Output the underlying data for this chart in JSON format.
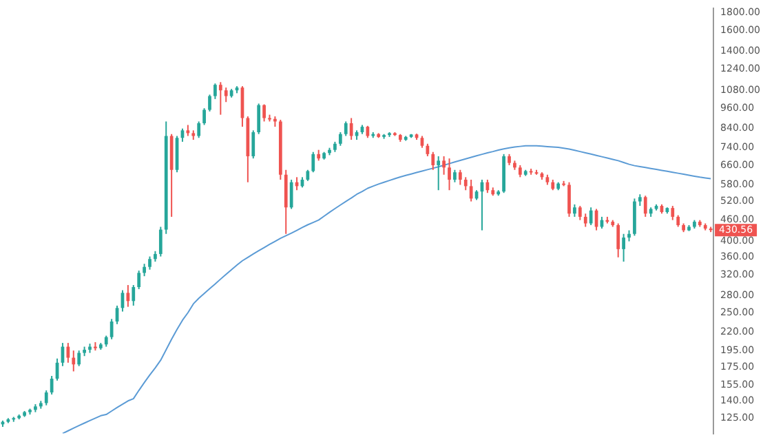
{
  "chart_data": {
    "type": "candlestick",
    "categories": [
      null,
      null,
      null,
      null,
      null,
      null,
      null,
      null,
      null,
      null,
      null,
      null,
      null,
      null,
      null,
      null,
      null,
      null,
      null,
      null,
      null,
      null,
      null,
      null,
      null,
      null,
      null,
      null,
      null,
      null,
      null,
      null,
      null,
      null,
      null,
      null,
      null,
      null,
      null,
      null,
      null,
      null,
      null,
      null,
      null,
      null,
      null,
      null,
      null,
      null,
      null,
      null,
      null,
      null,
      null,
      null,
      null,
      null,
      null,
      null,
      null,
      null,
      null,
      null,
      null,
      null,
      null,
      null,
      null,
      null,
      null,
      null,
      null,
      null,
      null,
      null,
      null,
      null,
      null,
      null,
      null,
      null,
      null,
      null,
      null,
      null,
      null,
      null,
      null,
      null,
      null,
      null,
      null,
      null,
      null,
      null,
      null,
      null,
      null,
      null,
      null,
      null,
      null,
      null,
      null,
      null,
      null,
      null,
      null,
      null,
      null,
      null,
      null,
      null,
      null,
      null,
      null,
      null,
      null,
      null,
      null,
      null,
      null,
      null,
      null,
      null,
      null,
      null,
      null,
      null,
      null
    ],
    "ohlc": [
      [
        120,
        123,
        118,
        122
      ],
      [
        122,
        125,
        121,
        124
      ],
      [
        124,
        126,
        122,
        125
      ],
      [
        125,
        128,
        124,
        127
      ],
      [
        127,
        131,
        126,
        130
      ],
      [
        130,
        133,
        128,
        132
      ],
      [
        132,
        137,
        130,
        135
      ],
      [
        135,
        140,
        133,
        138
      ],
      [
        138,
        150,
        136,
        148
      ],
      [
        148,
        165,
        146,
        162
      ],
      [
        162,
        185,
        160,
        180
      ],
      [
        180,
        205,
        176,
        200
      ],
      [
        200,
        205,
        180,
        186
      ],
      [
        186,
        195,
        170,
        178
      ],
      [
        178,
        195,
        176,
        192
      ],
      [
        192,
        200,
        188,
        196
      ],
      [
        196,
        204,
        192,
        200
      ],
      [
        200,
        206,
        195,
        198
      ],
      [
        198,
        205,
        196,
        203
      ],
      [
        203,
        215,
        200,
        213
      ],
      [
        213,
        240,
        210,
        236
      ],
      [
        236,
        262,
        232,
        258
      ],
      [
        258,
        290,
        252,
        285
      ],
      [
        285,
        300,
        260,
        270
      ],
      [
        270,
        300,
        262,
        296
      ],
      [
        296,
        330,
        292,
        325
      ],
      [
        325,
        345,
        318,
        338
      ],
      [
        338,
        362,
        332,
        356
      ],
      [
        356,
        375,
        350,
        368
      ],
      [
        368,
        440,
        362,
        432
      ],
      [
        432,
        880,
        420,
        800
      ],
      [
        800,
        810,
        470,
        640
      ],
      [
        640,
        800,
        630,
        790
      ],
      [
        790,
        840,
        770,
        830
      ],
      [
        830,
        860,
        800,
        815
      ],
      [
        815,
        830,
        780,
        800
      ],
      [
        800,
        880,
        790,
        870
      ],
      [
        870,
        960,
        860,
        950
      ],
      [
        950,
        1050,
        940,
        1040
      ],
      [
        1040,
        1130,
        1020,
        1120
      ],
      [
        1120,
        1140,
        920,
        1080
      ],
      [
        1080,
        1100,
        1000,
        1040
      ],
      [
        1040,
        1090,
        1030,
        1080
      ],
      [
        1080,
        1110,
        1060,
        1100
      ],
      [
        1100,
        1110,
        850,
        900
      ],
      [
        900,
        910,
        590,
        700
      ],
      [
        700,
        830,
        690,
        820
      ],
      [
        820,
        990,
        810,
        980
      ],
      [
        980,
        985,
        880,
        900
      ],
      [
        900,
        920,
        880,
        895
      ],
      [
        895,
        910,
        850,
        880
      ],
      [
        880,
        890,
        600,
        620
      ],
      [
        620,
        640,
        420,
        500
      ],
      [
        500,
        600,
        495,
        590
      ],
      [
        590,
        610,
        560,
        575
      ],
      [
        575,
        610,
        570,
        600
      ],
      [
        600,
        640,
        595,
        635
      ],
      [
        635,
        720,
        630,
        710
      ],
      [
        710,
        730,
        680,
        690
      ],
      [
        690,
        720,
        685,
        715
      ],
      [
        715,
        740,
        705,
        730
      ],
      [
        730,
        770,
        720,
        760
      ],
      [
        760,
        820,
        750,
        810
      ],
      [
        810,
        880,
        800,
        870
      ],
      [
        870,
        900,
        780,
        800
      ],
      [
        800,
        830,
        780,
        820
      ],
      [
        820,
        860,
        810,
        850
      ],
      [
        850,
        855,
        790,
        800
      ],
      [
        800,
        820,
        790,
        810
      ],
      [
        810,
        815,
        790,
        795
      ],
      [
        795,
        810,
        785,
        805
      ],
      [
        805,
        820,
        795,
        815
      ],
      [
        815,
        820,
        800,
        805
      ],
      [
        805,
        810,
        770,
        780
      ],
      [
        780,
        800,
        775,
        795
      ],
      [
        795,
        810,
        790,
        808
      ],
      [
        808,
        812,
        780,
        790
      ],
      [
        790,
        800,
        740,
        750
      ],
      [
        750,
        760,
        700,
        710
      ],
      [
        710,
        720,
        640,
        660
      ],
      [
        660,
        700,
        560,
        680
      ],
      [
        680,
        700,
        620,
        650
      ],
      [
        650,
        690,
        560,
        600
      ],
      [
        600,
        640,
        590,
        630
      ],
      [
        630,
        640,
        580,
        600
      ],
      [
        600,
        610,
        560,
        575
      ],
      [
        575,
        600,
        520,
        530
      ],
      [
        530,
        560,
        525,
        555
      ],
      [
        555,
        600,
        430,
        590
      ],
      [
        590,
        600,
        550,
        560
      ],
      [
        560,
        570,
        540,
        545
      ],
      [
        545,
        560,
        540,
        555
      ],
      [
        555,
        710,
        550,
        700
      ],
      [
        700,
        710,
        660,
        670
      ],
      [
        670,
        680,
        640,
        650
      ],
      [
        650,
        660,
        610,
        620
      ],
      [
        620,
        640,
        615,
        635
      ],
      [
        635,
        645,
        620,
        630
      ],
      [
        630,
        640,
        620,
        625
      ],
      [
        625,
        630,
        600,
        610
      ],
      [
        610,
        620,
        580,
        590
      ],
      [
        590,
        600,
        560,
        565
      ],
      [
        565,
        590,
        560,
        585
      ],
      [
        585,
        595,
        575,
        580
      ],
      [
        580,
        590,
        470,
        480
      ],
      [
        480,
        510,
        470,
        500
      ],
      [
        500,
        505,
        460,
        470
      ],
      [
        470,
        480,
        440,
        450
      ],
      [
        450,
        500,
        445,
        490
      ],
      [
        490,
        495,
        430,
        440
      ],
      [
        440,
        470,
        435,
        460
      ],
      [
        460,
        470,
        450,
        455
      ],
      [
        455,
        460,
        440,
        445
      ],
      [
        445,
        450,
        360,
        380
      ],
      [
        380,
        420,
        350,
        410
      ],
      [
        410,
        430,
        400,
        420
      ],
      [
        420,
        530,
        415,
        520
      ],
      [
        520,
        545,
        505,
        535
      ],
      [
        535,
        540,
        470,
        480
      ],
      [
        480,
        500,
        470,
        495
      ],
      [
        495,
        510,
        490,
        505
      ],
      [
        505,
        510,
        480,
        485
      ],
      [
        485,
        500,
        480,
        498
      ],
      [
        498,
        505,
        460,
        470
      ],
      [
        470,
        475,
        440,
        445
      ],
      [
        445,
        450,
        425,
        430
      ],
      [
        430,
        445,
        428,
        440
      ],
      [
        440,
        460,
        435,
        455
      ],
      [
        455,
        460,
        440,
        445
      ],
      [
        445,
        450,
        430,
        435
      ],
      [
        435,
        440,
        425,
        430.56
      ]
    ],
    "colors": [
      "#26a69a",
      "#26a69a",
      "#26a69a",
      "#26a69a",
      "#26a69a",
      "#26a69a",
      "#26a69a",
      "#26a69a",
      "#26a69a",
      "#26a69a",
      "#26a69a",
      "#26a69a",
      "#ef5350",
      "#ef5350",
      "#26a69a",
      "#26a69a",
      "#26a69a",
      "#ef5350",
      "#26a69a",
      "#26a69a",
      "#26a69a",
      "#26a69a",
      "#26a69a",
      "#ef5350",
      "#26a69a",
      "#26a69a",
      "#26a69a",
      "#26a69a",
      "#26a69a",
      "#26a69a",
      "#26a69a",
      "#ef5350",
      "#26a69a",
      "#26a69a",
      "#ef5350",
      "#ef5350",
      "#26a69a",
      "#26a69a",
      "#26a69a",
      "#26a69a",
      "#ef5350",
      "#ef5350",
      "#26a69a",
      "#26a69a",
      "#ef5350",
      "#ef5350",
      "#26a69a",
      "#26a69a",
      "#ef5350",
      "#ef5350",
      "#ef5350",
      "#ef5350",
      "#ef5350",
      "#26a69a",
      "#ef5350",
      "#26a69a",
      "#26a69a",
      "#26a69a",
      "#ef5350",
      "#26a69a",
      "#26a69a",
      "#26a69a",
      "#26a69a",
      "#26a69a",
      "#ef5350",
      "#26a69a",
      "#26a69a",
      "#ef5350",
      "#26a69a",
      "#ef5350",
      "#26a69a",
      "#26a69a",
      "#ef5350",
      "#ef5350",
      "#26a69a",
      "#26a69a",
      "#ef5350",
      "#ef5350",
      "#ef5350",
      "#ef5350",
      "#26a69a",
      "#ef5350",
      "#ef5350",
      "#26a69a",
      "#ef5350",
      "#ef5350",
      "#ef5350",
      "#26a69a",
      "#26a69a",
      "#ef5350",
      "#ef5350",
      "#26a69a",
      "#26a69a",
      "#ef5350",
      "#ef5350",
      "#ef5350",
      "#26a69a",
      "#ef5350",
      "#ef5350",
      "#ef5350",
      "#ef5350",
      "#ef5350",
      "#26a69a",
      "#ef5350",
      "#ef5350",
      "#26a69a",
      "#ef5350",
      "#ef5350",
      "#26a69a",
      "#ef5350",
      "#26a69a",
      "#ef5350",
      "#ef5350",
      "#ef5350",
      "#26a69a",
      "#26a69a",
      "#26a69a",
      "#26a69a",
      "#ef5350",
      "#26a69a",
      "#26a69a",
      "#ef5350",
      "#26a69a",
      "#ef5350",
      "#ef5350",
      "#ef5350",
      "#26a69a",
      "#26a69a",
      "#ef5350",
      "#ef5350",
      "#ef5350"
    ],
    "series": [
      {
        "type": "line",
        "color": "#5b9bd5",
        "values": [
          null,
          null,
          null,
          null,
          null,
          null,
          null,
          null,
          null,
          null,
          null,
          113,
          115,
          117,
          119,
          121,
          123,
          125,
          127,
          128,
          131,
          134,
          137,
          140,
          142,
          150,
          158,
          166,
          174,
          183,
          196,
          210,
          224,
          238,
          250,
          265,
          275,
          284,
          293,
          302,
          312,
          322,
          332,
          342,
          352,
          360,
          368,
          376,
          384,
          392,
          400,
          408,
          415,
          422,
          430,
          438,
          446,
          453,
          460,
          472,
          484,
          496,
          508,
          520,
          532,
          545,
          555,
          567,
          575,
          583,
          590,
          597,
          604,
          611,
          617,
          623,
          629,
          635,
          641,
          647,
          653,
          660,
          667,
          674,
          681,
          688,
          695,
          702,
          709,
          716,
          722,
          729,
          735,
          740,
          744,
          747,
          750,
          750,
          750,
          748,
          746,
          744,
          742,
          738,
          734,
          728,
          722,
          716,
          710,
          704,
          698,
          692,
          686,
          680,
          672,
          664,
          658,
          654,
          650,
          646,
          642,
          638,
          634,
          630,
          626,
          622,
          618,
          614,
          610,
          607,
          604
        ]
      }
    ],
    "log": "y",
    "ylim": [
      113,
      1850
    ],
    "yticks": [
      {
        "value": 1800,
        "label": "1800.00"
      },
      {
        "value": 1600,
        "label": "1600.00"
      },
      {
        "value": 1400,
        "label": "1400.00"
      },
      {
        "value": 1240,
        "label": "1240.00"
      },
      {
        "value": 1080,
        "label": "1080.00"
      },
      {
        "value": 960,
        "label": "960.00"
      },
      {
        "value": 840,
        "label": "840.00"
      },
      {
        "value": 740,
        "label": "740.00"
      },
      {
        "value": 660,
        "label": "660.00"
      },
      {
        "value": 580,
        "label": "580.00"
      },
      {
        "value": 520,
        "label": "520.00"
      },
      {
        "value": 460,
        "label": "460.00"
      },
      {
        "value": 400,
        "label": "400.00"
      },
      {
        "value": 360,
        "label": "360.00"
      },
      {
        "value": 320,
        "label": "320.00"
      },
      {
        "value": 280,
        "label": "280.00"
      },
      {
        "value": 250,
        "label": "250.00"
      },
      {
        "value": 220,
        "label": "220.00"
      },
      {
        "value": 195,
        "label": "195.00"
      },
      {
        "value": 175,
        "label": "175.00"
      },
      {
        "value": 155,
        "label": "155.00"
      },
      {
        "value": 140,
        "label": "140.00"
      },
      {
        "value": 125,
        "label": "125.00"
      }
    ],
    "annotations": [
      "430.56"
    ],
    "tick_labels": "y",
    "grid": false,
    "legend": false
  }
}
